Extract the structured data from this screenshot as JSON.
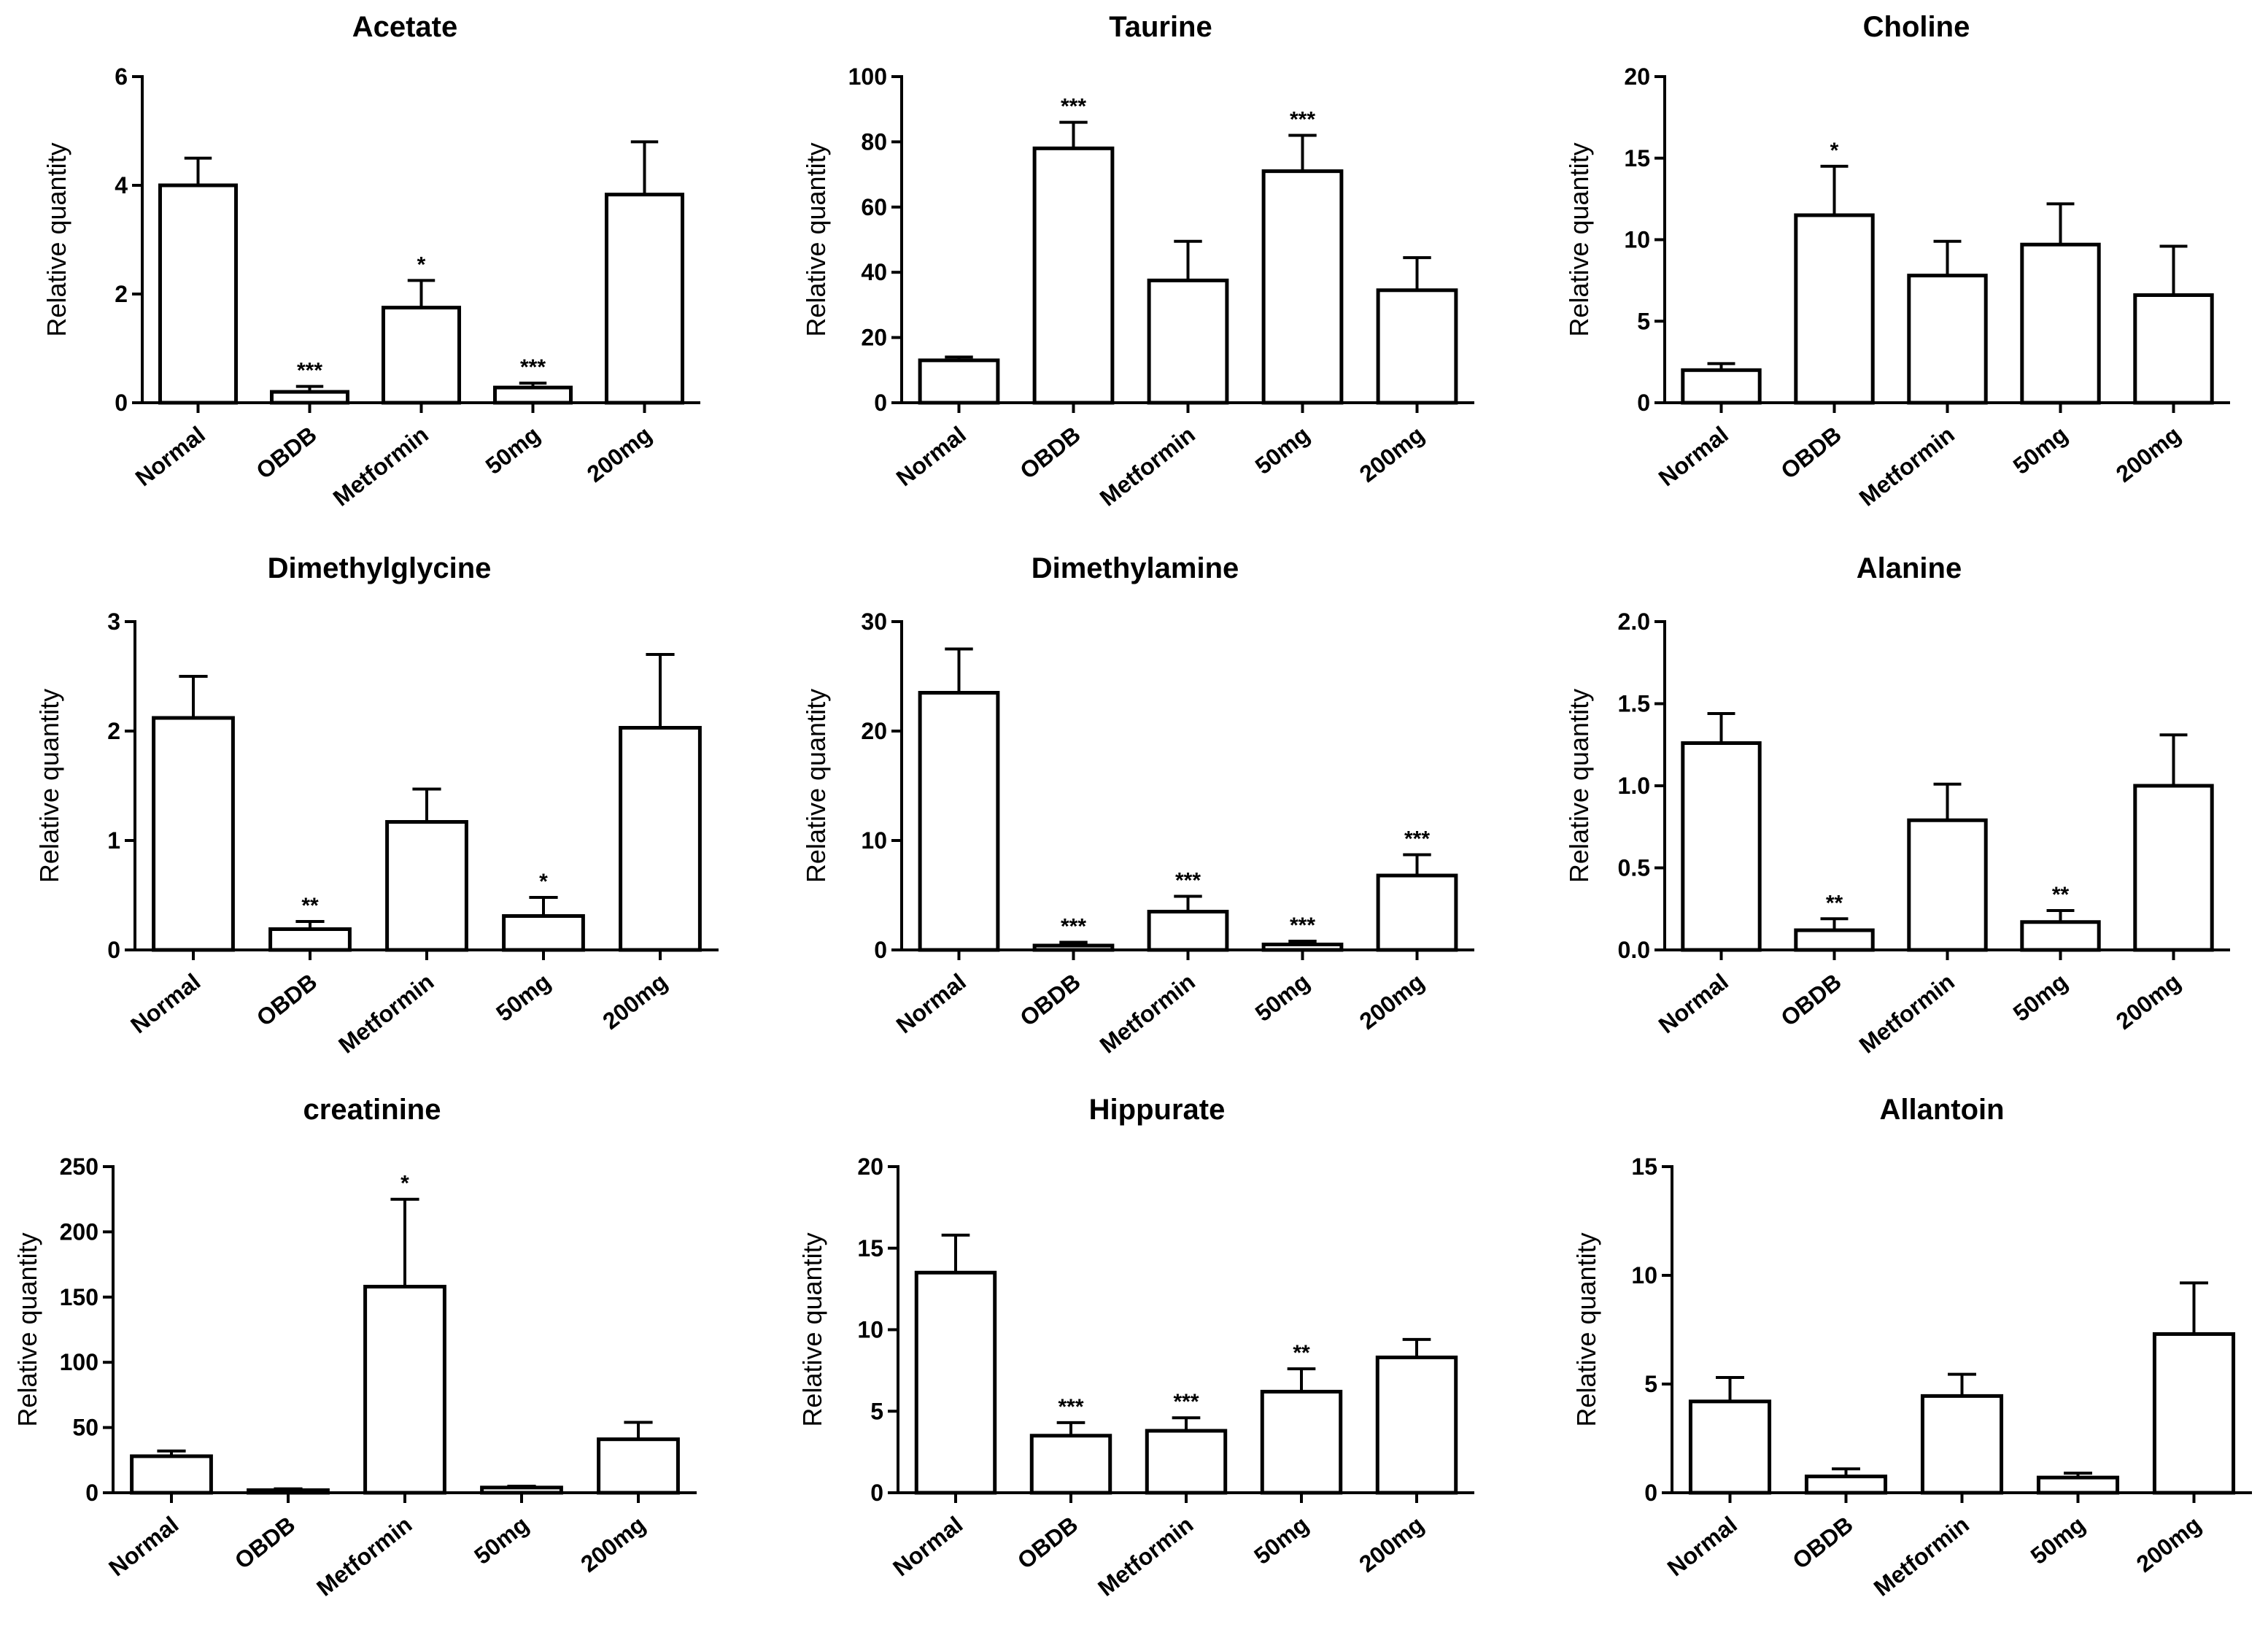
{
  "chart_data": [
    {
      "type": "bar",
      "title": "Acetate",
      "ylabel": "Relative quantity",
      "categories": [
        "Normal",
        "OBDB",
        "Metformin",
        "50mg",
        "200mg"
      ],
      "values": [
        4.0,
        0.2,
        1.75,
        0.28,
        3.83
      ],
      "errors": [
        0.5,
        0.1,
        0.5,
        0.08,
        0.97
      ],
      "significance": [
        "",
        "***",
        "*",
        "***",
        ""
      ],
      "ylim": [
        0,
        6
      ],
      "yticks": [
        0,
        2,
        4,
        6
      ],
      "ytick_labels": [
        "0",
        "2",
        "4",
        "6"
      ]
    },
    {
      "type": "bar",
      "title": "Taurine",
      "ylabel": "Relative quantity",
      "categories": [
        "Normal",
        "OBDB",
        "Metformin",
        "50mg",
        "200mg"
      ],
      "values": [
        13,
        78,
        37.5,
        71,
        34.5
      ],
      "errors": [
        1,
        8,
        12,
        11,
        10
      ],
      "significance": [
        "",
        "***",
        "",
        "***",
        ""
      ],
      "ylim": [
        0,
        100
      ],
      "yticks": [
        0,
        20,
        40,
        60,
        80,
        100
      ],
      "ytick_labels": [
        "0",
        "20",
        "40",
        "60",
        "80",
        "100"
      ]
    },
    {
      "type": "bar",
      "title": "Choline",
      "ylabel": "Relative quantity",
      "categories": [
        "Normal",
        "OBDB",
        "Metformin",
        "50mg",
        "200mg"
      ],
      "values": [
        2.0,
        11.5,
        7.8,
        9.7,
        6.6
      ],
      "errors": [
        0.4,
        3.0,
        2.1,
        2.5,
        3.0
      ],
      "significance": [
        "",
        "*",
        "",
        "",
        ""
      ],
      "ylim": [
        0,
        20
      ],
      "yticks": [
        0,
        5,
        10,
        15,
        20
      ],
      "ytick_labels": [
        "0",
        "5",
        "10",
        "15",
        "20"
      ]
    },
    {
      "type": "bar",
      "title": "Dimethylglycine",
      "ylabel": "Relative quantity",
      "categories": [
        "Normal",
        "OBDB",
        "Metformin",
        "50mg",
        "200mg"
      ],
      "values": [
        2.12,
        0.19,
        1.17,
        0.31,
        2.03
      ],
      "errors": [
        0.38,
        0.07,
        0.3,
        0.17,
        0.67
      ],
      "significance": [
        "",
        "**",
        "",
        "*",
        ""
      ],
      "ylim": [
        0,
        3
      ],
      "yticks": [
        0,
        1,
        2,
        3
      ],
      "ytick_labels": [
        "0",
        "1",
        "2",
        "3"
      ]
    },
    {
      "type": "bar",
      "title": "Dimethylamine",
      "ylabel": "Relative quantity",
      "categories": [
        "Normal",
        "OBDB",
        "Metformin",
        "50mg",
        "200mg"
      ],
      "values": [
        23.5,
        0.4,
        3.5,
        0.5,
        6.8
      ],
      "errors": [
        4.0,
        0.3,
        1.4,
        0.3,
        1.9
      ],
      "significance": [
        "",
        "***",
        "***",
        "***",
        "***"
      ],
      "ylim": [
        0,
        30
      ],
      "yticks": [
        0,
        10,
        20,
        30
      ],
      "ytick_labels": [
        "0",
        "10",
        "20",
        "30"
      ]
    },
    {
      "type": "bar",
      "title": "Alanine",
      "ylabel": "Relative quantity",
      "categories": [
        "Normal",
        "OBDB",
        "Metformin",
        "50mg",
        "200mg"
      ],
      "values": [
        1.26,
        0.12,
        0.79,
        0.17,
        1.0
      ],
      "errors": [
        0.18,
        0.07,
        0.22,
        0.07,
        0.31
      ],
      "significance": [
        "",
        "**",
        "",
        "**",
        ""
      ],
      "ylim": [
        0,
        2
      ],
      "yticks": [
        0,
        0.5,
        1,
        1.5,
        2
      ],
      "ytick_labels": [
        "0.0",
        "0.5",
        "1.0",
        "1.5",
        "2.0"
      ]
    },
    {
      "type": "bar",
      "title": "creatinine",
      "ylabel": "Relative quantity",
      "categories": [
        "Normal",
        "OBDB",
        "Metformin",
        "50mg",
        "200mg"
      ],
      "values": [
        28,
        2,
        158,
        4,
        41
      ],
      "errors": [
        4,
        1,
        67,
        1,
        13
      ],
      "significance": [
        "",
        "",
        "*",
        "",
        ""
      ],
      "ylim": [
        0,
        250
      ],
      "yticks": [
        0,
        50,
        100,
        150,
        200,
        250
      ],
      "ytick_labels": [
        "0",
        "50",
        "100",
        "150",
        "200",
        "250"
      ]
    },
    {
      "type": "bar",
      "title": "Hippurate",
      "ylabel": "Relative quantity",
      "categories": [
        "Normal",
        "OBDB",
        "Metformin",
        "50mg",
        "200mg"
      ],
      "values": [
        13.5,
        3.5,
        3.8,
        6.2,
        8.3
      ],
      "errors": [
        2.3,
        0.8,
        0.8,
        1.4,
        1.1
      ],
      "significance": [
        "",
        "***",
        "***",
        "**",
        ""
      ],
      "ylim": [
        0,
        20
      ],
      "yticks": [
        0,
        5,
        10,
        15,
        20
      ],
      "ytick_labels": [
        "0",
        "5",
        "10",
        "15",
        "20"
      ]
    },
    {
      "type": "bar",
      "title": "Allantoin",
      "ylabel": "Relative quantity",
      "categories": [
        "Normal",
        "OBDB",
        "Metformin",
        "50mg",
        "200mg"
      ],
      "values": [
        4.2,
        0.75,
        4.45,
        0.7,
        7.3
      ],
      "errors": [
        1.1,
        0.35,
        1.0,
        0.2,
        2.35
      ],
      "significance": [
        "",
        "",
        "",
        "",
        ""
      ],
      "ylim": [
        0,
        15
      ],
      "yticks": [
        0,
        5,
        10,
        15
      ],
      "ytick_labels": [
        "0",
        "5",
        "10",
        "15"
      ]
    }
  ]
}
